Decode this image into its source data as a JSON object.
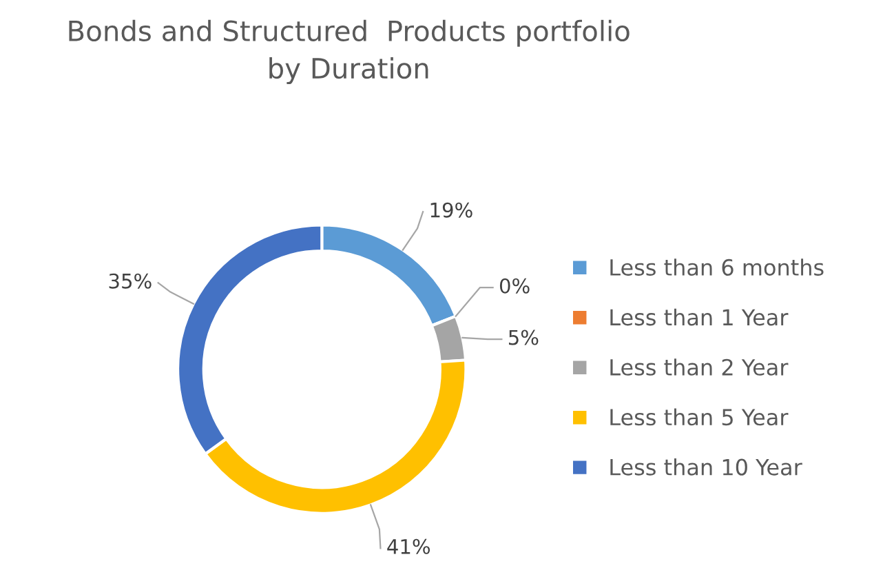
{
  "chart_data": {
    "type": "donut",
    "title": "Bonds and Structured  Products portfolio\nby Duration",
    "categories": [
      "Less than 6 months",
      "Less than 1 Year",
      "Less than 2 Year",
      "Less than 5 Year",
      "Less than 10 Year"
    ],
    "values": [
      19,
      0,
      5,
      41,
      35
    ],
    "colors": [
      "#5b9bd5",
      "#ed7d31",
      "#a5a5a5",
      "#ffc000",
      "#4472c4"
    ],
    "value_labels": [
      "19%",
      "0%",
      "5%",
      "41%",
      "35%"
    ],
    "legend": "right"
  }
}
